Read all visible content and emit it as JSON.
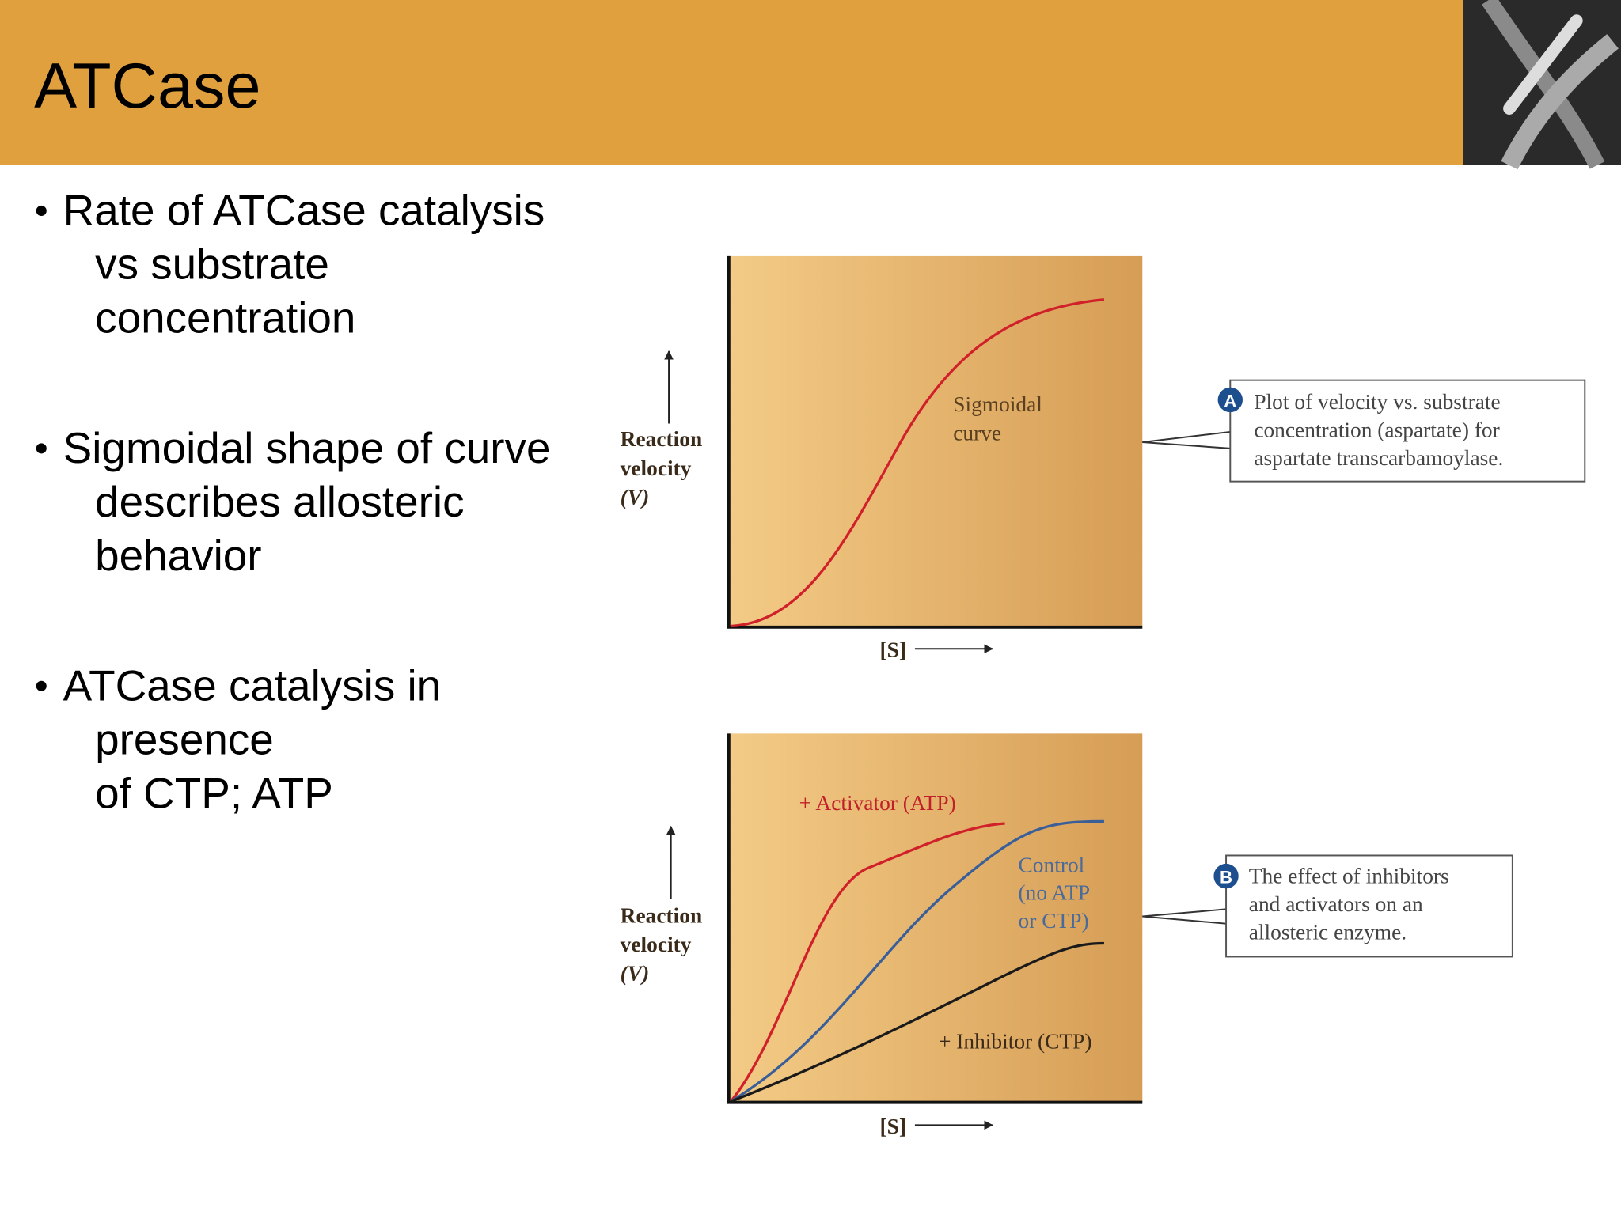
{
  "header": {
    "title": "ATCase"
  },
  "bullets": [
    [
      "Rate of ATCase catalysis",
      "vs substrate",
      "concentration"
    ],
    [
      "Sigmoidal shape of curve",
      "describes allosteric",
      "behavior"
    ],
    [
      "ATCase catalysis in",
      "presence",
      "of CTP; ATP"
    ]
  ],
  "figures": [
    {
      "y_label": [
        "Reaction",
        "velocity",
        "(V)"
      ],
      "x_label": "[S]",
      "curve_labels": [
        [
          "Sigmoidal",
          "curve"
        ]
      ],
      "caption": {
        "marker": "A",
        "lines": [
          "Plot of velocity vs. substrate",
          "concentration (aspartate) for",
          "aspartate transcarbamoylase."
        ]
      }
    },
    {
      "y_label": [
        "Reaction",
        "velocity",
        "(V)"
      ],
      "x_label": "[S]",
      "curve_labels": [
        [
          "+ Activator (ATP)"
        ],
        [
          "Control",
          "(no ATP",
          "or CTP)"
        ],
        [
          "+ Inhibitor (CTP)"
        ]
      ],
      "caption": {
        "marker": "B",
        "lines": [
          "The effect of inhibitors",
          "and activators on an",
          "allosteric enzyme."
        ]
      }
    }
  ]
}
